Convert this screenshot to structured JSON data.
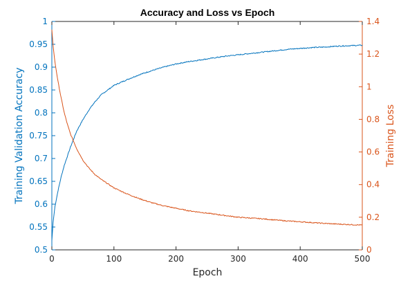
{
  "chart_data": {
    "type": "line",
    "title": "Accuracy and Loss vs Epoch",
    "xlabel": "Epoch",
    "ylabel_left": "Training Validation Accuracy",
    "ylabel_right": "Training Loss",
    "xlim": [
      0,
      500
    ],
    "ylim_left": [
      0.5,
      1
    ],
    "ylim_right": [
      0,
      1.4
    ],
    "x_ticks": [
      0,
      100,
      200,
      300,
      400,
      500
    ],
    "y_left_ticks": [
      "0.5",
      "0.55",
      "0.6",
      "0.65",
      "0.7",
      "0.75",
      "0.8",
      "0.85",
      "0.9",
      "0.95",
      "1"
    ],
    "y_right_ticks": [
      "0",
      "0.2",
      "0.4",
      "0.6",
      "0.8",
      "1",
      "1.2",
      "1.4"
    ],
    "grid": false,
    "colors": {
      "accuracy": "#0072BD",
      "loss": "#D95319",
      "axes": "#262626"
    },
    "series": [
      {
        "axis": "left",
        "color": "#0072BD",
        "x": [
          0,
          2,
          5,
          10,
          15,
          20,
          25,
          30,
          40,
          50,
          60,
          70,
          80,
          90,
          100,
          120,
          140,
          160,
          180,
          200,
          220,
          240,
          260,
          280,
          300,
          320,
          340,
          360,
          380,
          400,
          420,
          440,
          460,
          480,
          500
        ],
        "y": [
          0.52,
          0.56,
          0.595,
          0.63,
          0.66,
          0.685,
          0.705,
          0.725,
          0.76,
          0.785,
          0.807,
          0.825,
          0.84,
          0.85,
          0.86,
          0.872,
          0.883,
          0.892,
          0.9,
          0.907,
          0.912,
          0.916,
          0.92,
          0.924,
          0.927,
          0.93,
          0.933,
          0.936,
          0.939,
          0.941,
          0.943,
          0.944,
          0.946,
          0.947,
          0.948
        ]
      },
      {
        "axis": "right",
        "color": "#D95319",
        "x": [
          0,
          2,
          5,
          10,
          15,
          20,
          25,
          30,
          40,
          50,
          60,
          70,
          80,
          90,
          100,
          120,
          140,
          160,
          180,
          200,
          220,
          240,
          260,
          280,
          300,
          320,
          340,
          360,
          380,
          400,
          420,
          440,
          460,
          480,
          500
        ],
        "y": [
          1.35,
          1.25,
          1.15,
          1.03,
          0.93,
          0.84,
          0.77,
          0.71,
          0.62,
          0.55,
          0.5,
          0.46,
          0.43,
          0.405,
          0.38,
          0.345,
          0.315,
          0.29,
          0.27,
          0.255,
          0.24,
          0.23,
          0.22,
          0.21,
          0.2,
          0.195,
          0.19,
          0.183,
          0.177,
          0.172,
          0.167,
          0.162,
          0.158,
          0.155,
          0.152
        ]
      }
    ]
  }
}
